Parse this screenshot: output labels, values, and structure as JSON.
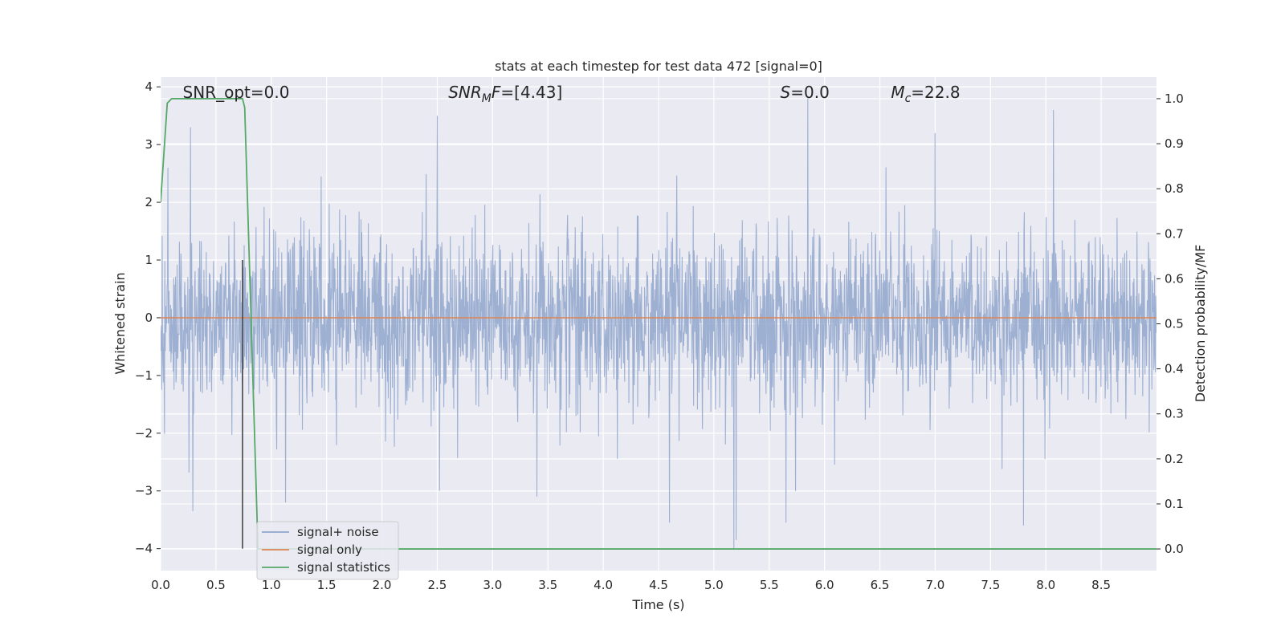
{
  "chart_data": {
    "type": "line",
    "title": "stats at each timestep for test data 472 [signal=0]",
    "xlabel": "Time (s)",
    "ylabel": "Whitened strain",
    "y2label": "Detection probability/MF",
    "xlim": [
      0.0,
      9.0
    ],
    "ylim": [
      -4.38,
      4.17
    ],
    "y2lim": [
      -0.048,
      1.048
    ],
    "xticks": [
      "0.0",
      "0.5",
      "1.0",
      "1.5",
      "2.0",
      "2.5",
      "3.0",
      "3.5",
      "4.0",
      "4.5",
      "5.0",
      "5.5",
      "6.0",
      "6.5",
      "7.0",
      "7.5",
      "8.0",
      "8.5"
    ],
    "yticks": [
      "4",
      "3",
      "2",
      "1",
      "0",
      "−1",
      "−2",
      "−3",
      "−4"
    ],
    "y2ticks": [
      "1.0",
      "0.9",
      "0.8",
      "0.7",
      "0.6",
      "0.5",
      "0.4",
      "0.3",
      "0.2",
      "0.1",
      "0.0"
    ],
    "grid": true,
    "legend_position": "lower-left",
    "annotations": [
      {
        "prefix": "SNR_opt",
        "value": "=0.0",
        "x": 0.2,
        "italic": false
      },
      {
        "prefix": "SNR",
        "sub": "M",
        "suffix": "F",
        "value": "=[4.43]",
        "x": 2.6,
        "italic": true
      },
      {
        "prefix": "S",
        "value": "=0.0",
        "x": 5.6,
        "italic": true
      },
      {
        "prefix": "M",
        "sub": "c",
        "value": "=22.8",
        "x": 6.6,
        "italic": true
      }
    ],
    "series": [
      {
        "name": "signal+ noise",
        "color": "#8fa6cd",
        "axis": "left",
        "description": "whitened noise, sample-level trace",
        "x_start": 0.0,
        "x_end": 9.0,
        "std": 0.75,
        "approx_extremes": [
          {
            "x": 0.27,
            "y": 3.3
          },
          {
            "x": 0.29,
            "y": -3.35
          },
          {
            "x": 1.13,
            "y": -3.2
          },
          {
            "x": 2.5,
            "y": 3.5
          },
          {
            "x": 2.52,
            "y": -3.0
          },
          {
            "x": 3.4,
            "y": -3.1
          },
          {
            "x": 4.6,
            "y": -3.55
          },
          {
            "x": 5.18,
            "y": -4.0
          },
          {
            "x": 5.2,
            "y": -3.85
          },
          {
            "x": 5.85,
            "y": 3.8
          },
          {
            "x": 5.65,
            "y": -3.55
          },
          {
            "x": 7.0,
            "y": 3.2
          },
          {
            "x": 7.8,
            "y": -3.6
          },
          {
            "x": 8.07,
            "y": 3.6
          }
        ]
      },
      {
        "name": "signal only",
        "color": "#dd8452",
        "axis": "left",
        "x": [
          0.0,
          9.0
        ],
        "y": [
          0.0,
          0.0
        ]
      },
      {
        "name": "signal statistics",
        "color": "#55a868",
        "axis": "right",
        "x": [
          0.0,
          0.06,
          0.1,
          0.74,
          0.76,
          0.88,
          9.0
        ],
        "y": [
          0.77,
          0.99,
          1.0,
          1.0,
          0.98,
          0.0,
          0.0
        ]
      }
    ],
    "vertical_marker": {
      "x": 0.74,
      "color": "#3a3a3a",
      "y_range": [
        -4.0,
        1.0
      ]
    }
  }
}
